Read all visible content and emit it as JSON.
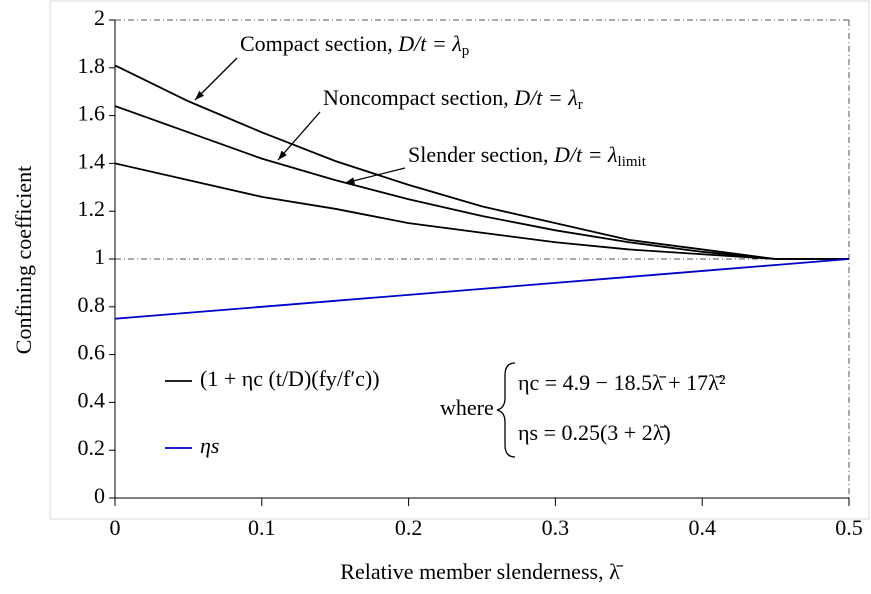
{
  "chart_data": {
    "type": "line",
    "xlabel": "Relative member slenderness, λ̄",
    "ylabel": "Confining coefficient",
    "x": [
      0,
      0.05,
      0.1,
      0.15,
      0.2,
      0.25,
      0.3,
      0.35,
      0.4,
      0.45,
      0.5
    ],
    "series": [
      {
        "color": "#000000",
        "values": [
          1.81,
          1.66,
          1.53,
          1.41,
          1.31,
          1.22,
          1.15,
          1.08,
          1.04,
          1.0,
          1.0
        ]
      },
      {
        "color": "#000000",
        "values": [
          1.64,
          1.53,
          1.42,
          1.33,
          1.25,
          1.18,
          1.12,
          1.07,
          1.03,
          1.0,
          1.0
        ]
      },
      {
        "color": "#000000",
        "values": [
          1.4,
          1.33,
          1.26,
          1.21,
          1.15,
          1.11,
          1.07,
          1.04,
          1.02,
          1.0,
          1.0
        ]
      },
      {
        "color": "#0000cc",
        "values": [
          0.75,
          0.775,
          0.8,
          0.825,
          0.85,
          0.875,
          0.9,
          0.925,
          0.95,
          0.975,
          1.0
        ]
      }
    ],
    "xlim": [
      0,
      0.5
    ],
    "xticks": [
      0,
      0.1,
      0.2,
      0.3,
      0.4,
      0.5
    ],
    "ylim": [
      0,
      2
    ],
    "yticks": [
      0,
      0.2,
      0.4,
      0.6,
      0.8,
      1,
      1.2,
      1.4,
      1.6,
      1.8,
      2
    ],
    "annotations": [
      {
        "text": "Compact section, ",
        "math": "D/t = λ",
        "sub": "p"
      },
      {
        "text": "Noncompact section, ",
        "math": "D/t = λ",
        "sub": "r"
      },
      {
        "text": "Slender section, ",
        "math": "D/t = λ",
        "sub": "limit"
      }
    ],
    "legend": [
      {
        "color": "#000000",
        "label": "(1 + ηc (t/D)(fy/f′c))"
      },
      {
        "color": "#0000cc",
        "label": "ηs"
      }
    ],
    "where_label": "where",
    "equations": [
      "ηc = 4.9 − 18.5λ̄ + 17λ̄²",
      "ηs = 0.25(3 + 2λ̄)"
    ]
  }
}
